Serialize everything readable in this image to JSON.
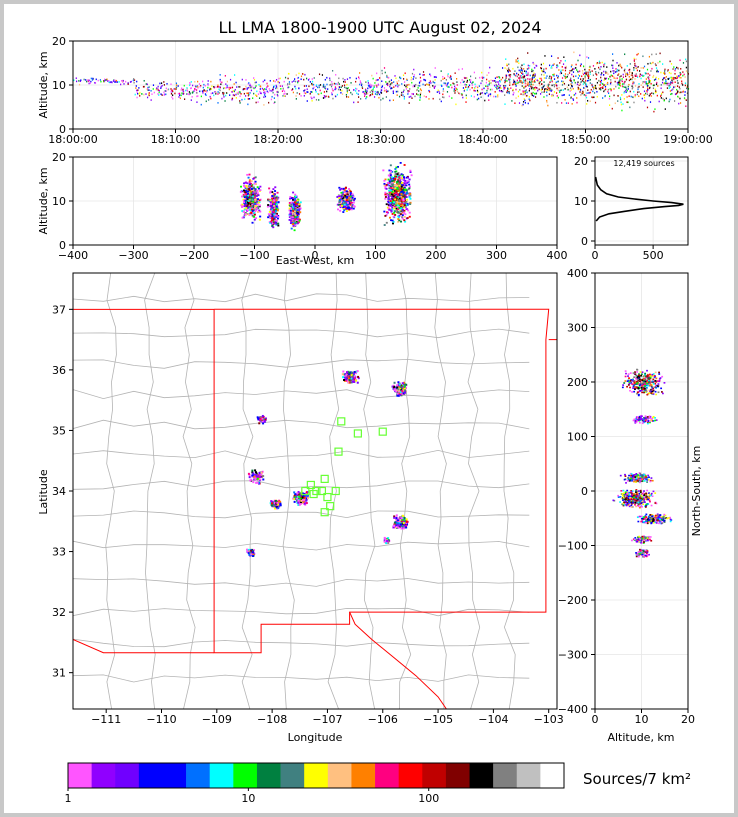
{
  "title": "LL LMA 1800-1900 UTC August 02, 2024",
  "chart_data": [
    {
      "id": "alt-time",
      "type": "scatter",
      "ylabel": "Altitude, km",
      "xlim_minutes": [
        0,
        60
      ],
      "ylim": [
        0,
        20
      ],
      "xticks": [
        "18:00:00",
        "18:10:00",
        "18:20:00",
        "18:30:00",
        "18:40:00",
        "18:50:00",
        "19:00:00"
      ],
      "yticks": [
        "0",
        "10",
        "20"
      ],
      "clusters": [
        {
          "t": [
            0,
            6
          ],
          "alt": [
            10,
            12
          ],
          "density": 0.3
        },
        {
          "t": [
            6,
            12
          ],
          "alt": [
            6,
            12
          ],
          "density": 0.6
        },
        {
          "t": [
            12,
            20
          ],
          "alt": [
            5,
            13
          ],
          "density": 1.0
        },
        {
          "t": [
            20,
            30
          ],
          "alt": [
            5,
            14
          ],
          "density": 1.2
        },
        {
          "t": [
            30,
            42
          ],
          "alt": [
            5,
            15
          ],
          "density": 1.6
        },
        {
          "t": [
            42,
            50
          ],
          "alt": [
            4,
            18
          ],
          "density": 2.2
        },
        {
          "t": [
            50,
            60
          ],
          "alt": [
            3,
            19
          ],
          "density": 2.4
        }
      ]
    },
    {
      "id": "alt-ew",
      "type": "scatter",
      "xlabel": "East-West, km",
      "ylabel": "Altitude, km",
      "xlim": [
        -400,
        400
      ],
      "ylim": [
        0,
        20
      ],
      "xticks": [
        "−400",
        "−300",
        "−200",
        "−100",
        "0",
        "100",
        "200",
        "300",
        "400"
      ],
      "yticks": [
        "0",
        "10",
        "20"
      ],
      "clusters": [
        {
          "x": [
            -125,
            -90
          ],
          "alt": [
            4,
            17
          ],
          "density": 1.0
        },
        {
          "x": [
            -80,
            -60
          ],
          "alt": [
            3,
            14
          ],
          "density": 0.8
        },
        {
          "x": [
            -45,
            -25
          ],
          "alt": [
            3,
            13
          ],
          "density": 0.9
        },
        {
          "x": [
            35,
            65
          ],
          "alt": [
            7,
            14
          ],
          "density": 0.8
        },
        {
          "x": [
            110,
            160
          ],
          "alt": [
            3,
            20
          ],
          "density": 1.6
        }
      ]
    },
    {
      "id": "alt-hist",
      "type": "line",
      "annotation": "12,419 sources",
      "xlim": [
        0,
        800
      ],
      "ylim": [
        -1,
        21
      ],
      "xticks": [
        "0",
        "500"
      ],
      "yticks": [
        "0",
        "10",
        "20"
      ],
      "points": [
        [
          10,
          5
        ],
        [
          40,
          6
        ],
        [
          120,
          6.8
        ],
        [
          250,
          7.4
        ],
        [
          420,
          8.1
        ],
        [
          600,
          8.6
        ],
        [
          720,
          8.9
        ],
        [
          760,
          9.2
        ],
        [
          660,
          9.6
        ],
        [
          500,
          10.0
        ],
        [
          340,
          10.5
        ],
        [
          200,
          11.0
        ],
        [
          100,
          11.8
        ],
        [
          50,
          12.8
        ],
        [
          20,
          14
        ],
        [
          5,
          16
        ]
      ]
    },
    {
      "id": "plan-view",
      "type": "scatter",
      "xlabel": "Longitude",
      "ylabel": "Latitude",
      "xlim": [
        -111.6,
        -102.85
      ],
      "ylim": [
        30.4,
        37.6
      ],
      "xticks": [
        "−111",
        "−110",
        "−109",
        "−108",
        "−107",
        "−106",
        "−105",
        "−104",
        "−103"
      ],
      "yticks": [
        "31",
        "32",
        "33",
        "34",
        "35",
        "36",
        "37"
      ],
      "clusters": [
        {
          "lon": -106.6,
          "lat": 35.9,
          "size": 0.15,
          "density": 1.0
        },
        {
          "lon": -105.7,
          "lat": 35.7,
          "size": 0.15,
          "density": 1.0
        },
        {
          "lon": -108.2,
          "lat": 35.2,
          "size": 0.1,
          "density": 0.4
        },
        {
          "lon": -108.3,
          "lat": 34.25,
          "size": 0.15,
          "density": 0.5
        },
        {
          "lon": -107.5,
          "lat": 33.9,
          "size": 0.15,
          "density": 1.2
        },
        {
          "lon": -107.95,
          "lat": 33.8,
          "size": 0.1,
          "density": 0.6
        },
        {
          "lon": -105.7,
          "lat": 33.5,
          "size": 0.15,
          "density": 0.9
        },
        {
          "lon": -108.4,
          "lat": 33.0,
          "size": 0.08,
          "density": 0.4
        },
        {
          "lon": -105.95,
          "lat": 33.2,
          "size": 0.06,
          "density": 0.3
        }
      ],
      "stations": [
        [
          -107.4,
          34.0
        ],
        [
          -107.3,
          34.1
        ],
        [
          -107.2,
          34.0
        ],
        [
          -107.1,
          34.0
        ],
        [
          -107.05,
          34.2
        ],
        [
          -107.0,
          33.9
        ],
        [
          -106.95,
          33.75
        ],
        [
          -107.05,
          33.65
        ],
        [
          -106.85,
          34.0
        ],
        [
          -107.25,
          33.95
        ],
        [
          -106.8,
          34.65
        ],
        [
          -106.75,
          35.15
        ],
        [
          -106.45,
          34.95
        ],
        [
          -106.0,
          34.98
        ]
      ],
      "station_color": "#66ff33",
      "state_border_color": "#ff0000",
      "county_border_color": "#b4b4b4"
    },
    {
      "id": "ns-alt",
      "type": "scatter",
      "xlabel": "Altitude, km",
      "ylabel": "North-South, km",
      "xlim": [
        0,
        20
      ],
      "ylim": [
        -400,
        400
      ],
      "xticks": [
        "0",
        "10",
        "20"
      ],
      "yticks": [
        "−400",
        "−300",
        "−200",
        "−100",
        "0",
        "100",
        "200",
        "300",
        "400"
      ],
      "clusters": [
        {
          "alt": [
            5,
            16
          ],
          "ns": [
            175,
            225
          ],
          "density": 1.4
        },
        {
          "alt": [
            7,
            14
          ],
          "ns": [
            125,
            140
          ],
          "density": 0.4
        },
        {
          "alt": [
            5,
            13
          ],
          "ns": [
            15,
            35
          ],
          "density": 0.7
        },
        {
          "alt": [
            3,
            14
          ],
          "ns": [
            -30,
            5
          ],
          "density": 1.4
        },
        {
          "alt": [
            8,
            17
          ],
          "ns": [
            -60,
            -40
          ],
          "density": 1.0
        },
        {
          "alt": [
            7,
            13
          ],
          "ns": [
            -95,
            -80
          ],
          "density": 0.4
        },
        {
          "alt": [
            8,
            12
          ],
          "ns": [
            -120,
            -105
          ],
          "density": 0.4
        }
      ]
    }
  ],
  "colorbar": {
    "label": "Sources/7 km²",
    "tick_labels": [
      "1",
      "10",
      "100"
    ],
    "colors": [
      "#ff55ff",
      "#9000ff",
      "#7000ff",
      "#0000ff",
      "#0000ff",
      "#0070ff",
      "#00ffff",
      "#00ff00",
      "#008040",
      "#408080",
      "#ffff00",
      "#ffc080",
      "#ff8000",
      "#ff0080",
      "#ff0000",
      "#c00000",
      "#800000",
      "#000000",
      "#808080",
      "#c0c0c0",
      "#ffffff"
    ]
  }
}
